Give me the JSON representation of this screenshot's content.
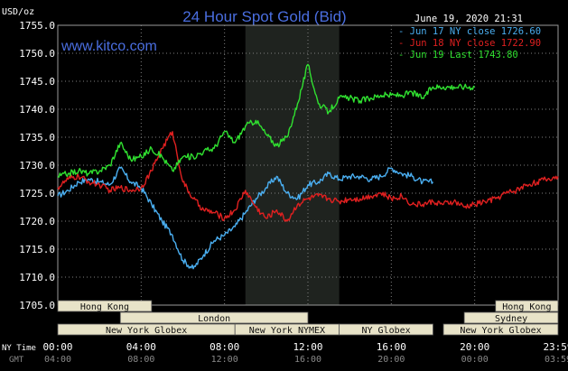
{
  "chart_data": {
    "type": "line",
    "title": "24 Hour Spot Gold (Bid)",
    "site": "www.kitco.com",
    "date_label": "June 19, 2020 21:31",
    "ylabel": "USD/oz",
    "ylim": [
      1705,
      1755
    ],
    "y_ticks": [
      "1755.0",
      "1750.0",
      "1745.0",
      "1740.0",
      "1735.0",
      "1730.0",
      "1725.0",
      "1720.0",
      "1715.0",
      "1710.0",
      "1705.0"
    ],
    "xlim": [
      0,
      24
    ],
    "x_ticks_ny": [
      "00:00",
      "04:00",
      "08:00",
      "12:00",
      "16:00",
      "20:00",
      "23:59"
    ],
    "x_ticks_gmt": [
      "04:00",
      "08:00",
      "12:00",
      "16:00",
      "20:00",
      "00:00",
      "03:59"
    ],
    "x_row_labels": {
      "ny": "NY Time",
      "gmt": "GMT"
    },
    "grid": true,
    "legend_position": "top-right",
    "colors": {
      "background": "#000000",
      "plot": "#000000",
      "highlight": "#1f231f",
      "grid": "#7f7f7f",
      "axis_text": "#ffffff",
      "title": "#4a6ee0",
      "site": "#4a6ee0",
      "session_band": "#e8e3c8"
    },
    "highlight_band": [
      9,
      13.5
    ],
    "series": [
      {
        "name": "Jun 17 NY close 1726.60",
        "color": "#4aaef0",
        "x": [
          0,
          0.5,
          1,
          1.5,
          2,
          2.5,
          3,
          3.5,
          4,
          4.5,
          5,
          5.5,
          6,
          6.5,
          7,
          7.5,
          8,
          8.5,
          9,
          9.5,
          10,
          10.5,
          11,
          11.5,
          12,
          12.5,
          13,
          13.5,
          14,
          14.5,
          15,
          15.5,
          16,
          16.5,
          17,
          17.5,
          18
        ],
        "values": [
          1724.5,
          1725.5,
          1727,
          1727.5,
          1727,
          1726.5,
          1729.5,
          1727,
          1726,
          1723,
          1720,
          1717.5,
          1713,
          1711.5,
          1714,
          1716.5,
          1717.5,
          1719,
          1721.5,
          1724,
          1726,
          1728,
          1725,
          1724,
          1726.5,
          1727,
          1728.5,
          1727.5,
          1728,
          1728,
          1727.5,
          1728,
          1729.5,
          1728.5,
          1728,
          1727,
          1727
        ]
      },
      {
        "name": "Jun 18 NY close 1722.90",
        "color": "#e02020",
        "x": [
          0,
          0.5,
          1,
          1.5,
          2,
          2.5,
          3,
          3.5,
          4,
          4.5,
          5,
          5.5,
          6,
          6.5,
          7,
          7.5,
          8,
          8.5,
          9,
          9.5,
          10,
          10.5,
          11,
          11.5,
          12,
          12.5,
          13,
          13.5,
          14,
          14.5,
          15,
          15.5,
          16,
          16.5,
          17,
          17.5,
          18,
          18.5,
          19,
          19.5,
          20,
          20.5,
          21,
          21.5,
          22,
          22.5,
          23,
          23.5,
          24
        ],
        "values": [
          1726,
          1727.5,
          1728,
          1727,
          1726.5,
          1725.5,
          1726,
          1725.5,
          1726,
          1729,
          1733,
          1736,
          1727,
          1724,
          1722,
          1721.5,
          1720.5,
          1722,
          1725.5,
          1722.5,
          1720.5,
          1722,
          1720,
          1723,
          1724,
          1724.5,
          1724,
          1723.5,
          1724,
          1724,
          1724.5,
          1725,
          1724,
          1724.5,
          1723,
          1723,
          1723.5,
          1723,
          1723.5,
          1722.5,
          1723,
          1723.5,
          1724,
          1725,
          1725.5,
          1726.5,
          1727,
          1727.5,
          1728
        ]
      },
      {
        "name": "Jun 19 Last 1743.80",
        "color": "#30e030",
        "x": [
          0,
          0.5,
          1,
          1.5,
          2,
          2.5,
          3,
          3.5,
          4,
          4.5,
          5,
          5.5,
          6,
          6.5,
          7,
          7.5,
          8,
          8.5,
          9,
          9.5,
          10,
          10.5,
          11,
          11.5,
          12,
          12.5,
          13,
          13.5,
          14,
          14.5,
          15,
          15.5,
          16,
          16.5,
          17,
          17.5,
          18,
          18.5,
          19,
          19.5,
          20
        ],
        "values": [
          1728,
          1728.5,
          1729,
          1728.5,
          1729,
          1730,
          1734,
          1731,
          1731.5,
          1733,
          1731.5,
          1729,
          1731.5,
          1731.5,
          1732.5,
          1733,
          1736,
          1734,
          1737,
          1738,
          1735.5,
          1733.5,
          1735,
          1741,
          1748,
          1741,
          1739.5,
          1742,
          1742,
          1741.5,
          1742,
          1742.5,
          1742.5,
          1742.5,
          1743,
          1742,
          1744,
          1744,
          1744,
          1744,
          1744
        ]
      }
    ],
    "session_rows": [
      [
        {
          "label": "Hong Kong",
          "start": 0,
          "end": 4.5
        },
        {
          "label": "Hong Kong",
          "start": 21,
          "end": 24
        }
      ],
      [
        {
          "label": "London",
          "start": 3,
          "end": 12
        },
        {
          "label": "Sydney",
          "start": 19.5,
          "end": 24
        }
      ],
      [
        {
          "label": "New York Globex",
          "start": 0,
          "end": 8.5
        },
        {
          "label": "New York NYMEX",
          "start": 8.5,
          "end": 13.5
        },
        {
          "label": "NY Globex",
          "start": 13.5,
          "end": 18
        },
        {
          "label": "New York Globex",
          "start": 18.5,
          "end": 24
        }
      ]
    ]
  }
}
